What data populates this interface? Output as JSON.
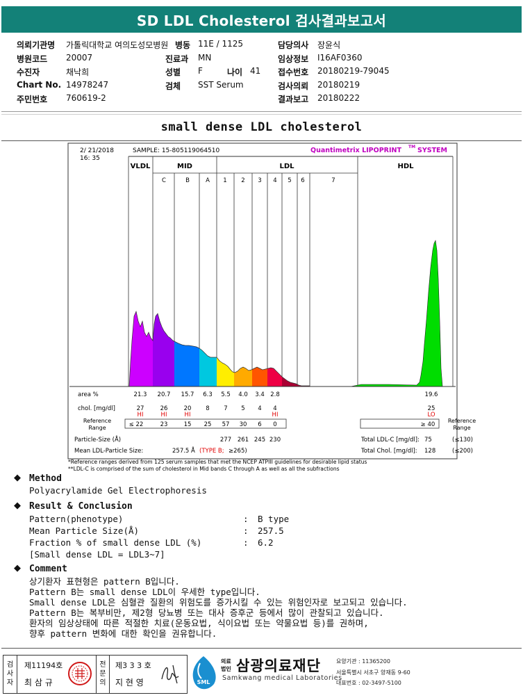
{
  "header": {
    "title": "SD LDL Cholesterol 검사결과보고서"
  },
  "info": {
    "col1": [
      {
        "label": "의뢰기관명",
        "value": "가톨릭대학교 여의도성모병원"
      },
      {
        "label": "병원코드",
        "value": "20007"
      },
      {
        "label": "수진자",
        "value": "채낙희"
      },
      {
        "label": "Chart No.",
        "value": "14978247"
      },
      {
        "label": "주민번호",
        "value": "760619-2"
      }
    ],
    "col2": [
      {
        "label": "병동",
        "value": "11E / 1125"
      },
      {
        "label": "진료과",
        "value": "MN"
      },
      {
        "label": "성별",
        "value": "F"
      },
      {
        "label": "검체",
        "value": "SST Serum"
      }
    ],
    "age": {
      "label": "나이",
      "value": "41"
    },
    "col3": [
      {
        "label": "담당의사",
        "value": "장윤식"
      },
      {
        "label": "임상정보",
        "value": "I16AF0360"
      },
      {
        "label": "접수번호",
        "value": "20180219-79045"
      },
      {
        "label": "검사의뢰",
        "value": "20180219"
      },
      {
        "label": "결과보고",
        "value": "20180222"
      }
    ]
  },
  "section_title": "small dense LDL cholesterol",
  "report": {
    "date": "2/ 21/2018",
    "time": "16: 35",
    "sample": "SAMPLE:   15-805119064510",
    "brand": "Quantimetrix LIPOPRINT",
    "brand_tm": "TM",
    "brand_system": "SYSTEM",
    "band_groups": [
      "VLDL",
      "MID",
      "LDL",
      "HDL"
    ],
    "mid_bands": [
      "C",
      "B",
      "A"
    ],
    "ldl_bands": [
      "1",
      "2",
      "3",
      "4",
      "5",
      "6",
      "7"
    ],
    "rows": {
      "area_label": "area %",
      "area": [
        "21.3",
        "20.7",
        "15.7",
        "6.3",
        "5.5",
        "4.0",
        "3.4",
        "2.8"
      ],
      "area_hdl": "19.6",
      "chol_label": "chol. [mg/dl]",
      "chol": [
        "27",
        "26",
        "20",
        "8",
        "7",
        "5",
        "4",
        "4"
      ],
      "chol_hdl": "25",
      "chol_flags": [
        "HI",
        "HI",
        "HI",
        "",
        "",
        "",
        "",
        "HI"
      ],
      "chol_hdl_flag": "LO",
      "ref_label_1": "Reference",
      "ref_label_2": "Range",
      "ref": [
        "≤ 22",
        "23",
        "15",
        "25",
        "57",
        "30",
        "6",
        "0"
      ],
      "ref_hdl": "≥ 40",
      "ps_label": "Particle-Size (Å)",
      "ps": [
        "277",
        "261",
        "245",
        "230"
      ],
      "total_ldl_label": "Total LDL-C [mg/dl]:",
      "total_ldl": "75",
      "total_ldl_ref": "(≤130)",
      "mean_label": "Mean LDL-Particle Size:",
      "mean_val": "257.5 Å",
      "mean_type": "(TYPE B;",
      "mean_ref": "≥265)",
      "total_chol_label": "Total Chol. [mg/dl]:",
      "total_chol": "128",
      "total_chol_ref": "(≤200)"
    },
    "note1": "*Reference ranges derived from 125 serum samples that met the NCEP ATPIII guidelines for desirable lipid status",
    "note2": "**LDL-C is comprised of the sum of cholesterol in Mid bands C through A as well as all the subfractions"
  },
  "chart_data": {
    "type": "area",
    "title": "",
    "xlabel": "",
    "ylabel": "",
    "series": [
      {
        "band": "VLDL",
        "color": "#cc00ff",
        "area_pct": 21.3
      },
      {
        "band": "C",
        "color": "#9900ee",
        "area_pct": 20.7
      },
      {
        "band": "B",
        "color": "#0077ff",
        "area_pct": 15.7
      },
      {
        "band": "A",
        "color": "#00c8e0",
        "area_pct": 6.3
      },
      {
        "band": "1",
        "color": "#ffee00",
        "area_pct": 5.5
      },
      {
        "band": "2",
        "color": "#ffaa00",
        "area_pct": 4.0
      },
      {
        "band": "3",
        "color": "#ff5500",
        "area_pct": 3.4
      },
      {
        "band": "4",
        "color": "#ee0044",
        "area_pct": 2.8
      },
      {
        "band": "HDL",
        "color": "#00dd00",
        "area_pct": 19.6
      }
    ]
  },
  "method": {
    "heading": "Method",
    "text": "Polyacrylamide Gel Electrophoresis"
  },
  "result": {
    "heading": "Result & Conclusion",
    "items": [
      {
        "label": "Pattern(phenotype)",
        "value": "B type"
      },
      {
        "label": "Mean Particle Size(Å)",
        "value": "257.5"
      },
      {
        "label": "Fraction % of small dense LDL (%)",
        "value": "6.2"
      }
    ],
    "note": "[Small dense LDL = LDL3~7]",
    "colon": ":"
  },
  "comment": {
    "heading": "Comment",
    "lines": [
      "상기환자 표현형은 pattern B입니다.",
      "Pattern B는 small dense LDL이 우세한 type입니다.",
      "Small dense LDL은 심혈관 질환의 위험도를 증가시킬 수 있는 위험인자로 보고되고 있습니다.",
      "Pattern B는 복부비만, 제2형 당뇨병 또는 대사 증후군 등에서 많이 관찰되고 있습니다.",
      "환자의 임상상태에 따른 적절한 치료(운동요법, 식이요법 또는 약물요법 등)를 권하며,",
      "향후 pattern 변화에 대한 확인을 권유합니다."
    ]
  },
  "footer": {
    "inspector_label": "검사자",
    "inspector_no": "제11194호",
    "inspector_name": "최 삼 규",
    "specialist_label": "전문의",
    "specialist_no": "제3 3 3 호",
    "specialist_name": "지 현 영",
    "logo_abbr": "SML",
    "corp_small_1": "의료",
    "corp_small_2": "법인",
    "corp_name": "삼광의료재단",
    "corp_en": "Samkwang medical Laboratories",
    "info1": "요양기관 : 11365200",
    "info2": "서울특별시 서초구 양재동 9-60",
    "info3": "대표번호 : 02-3497-5100"
  }
}
